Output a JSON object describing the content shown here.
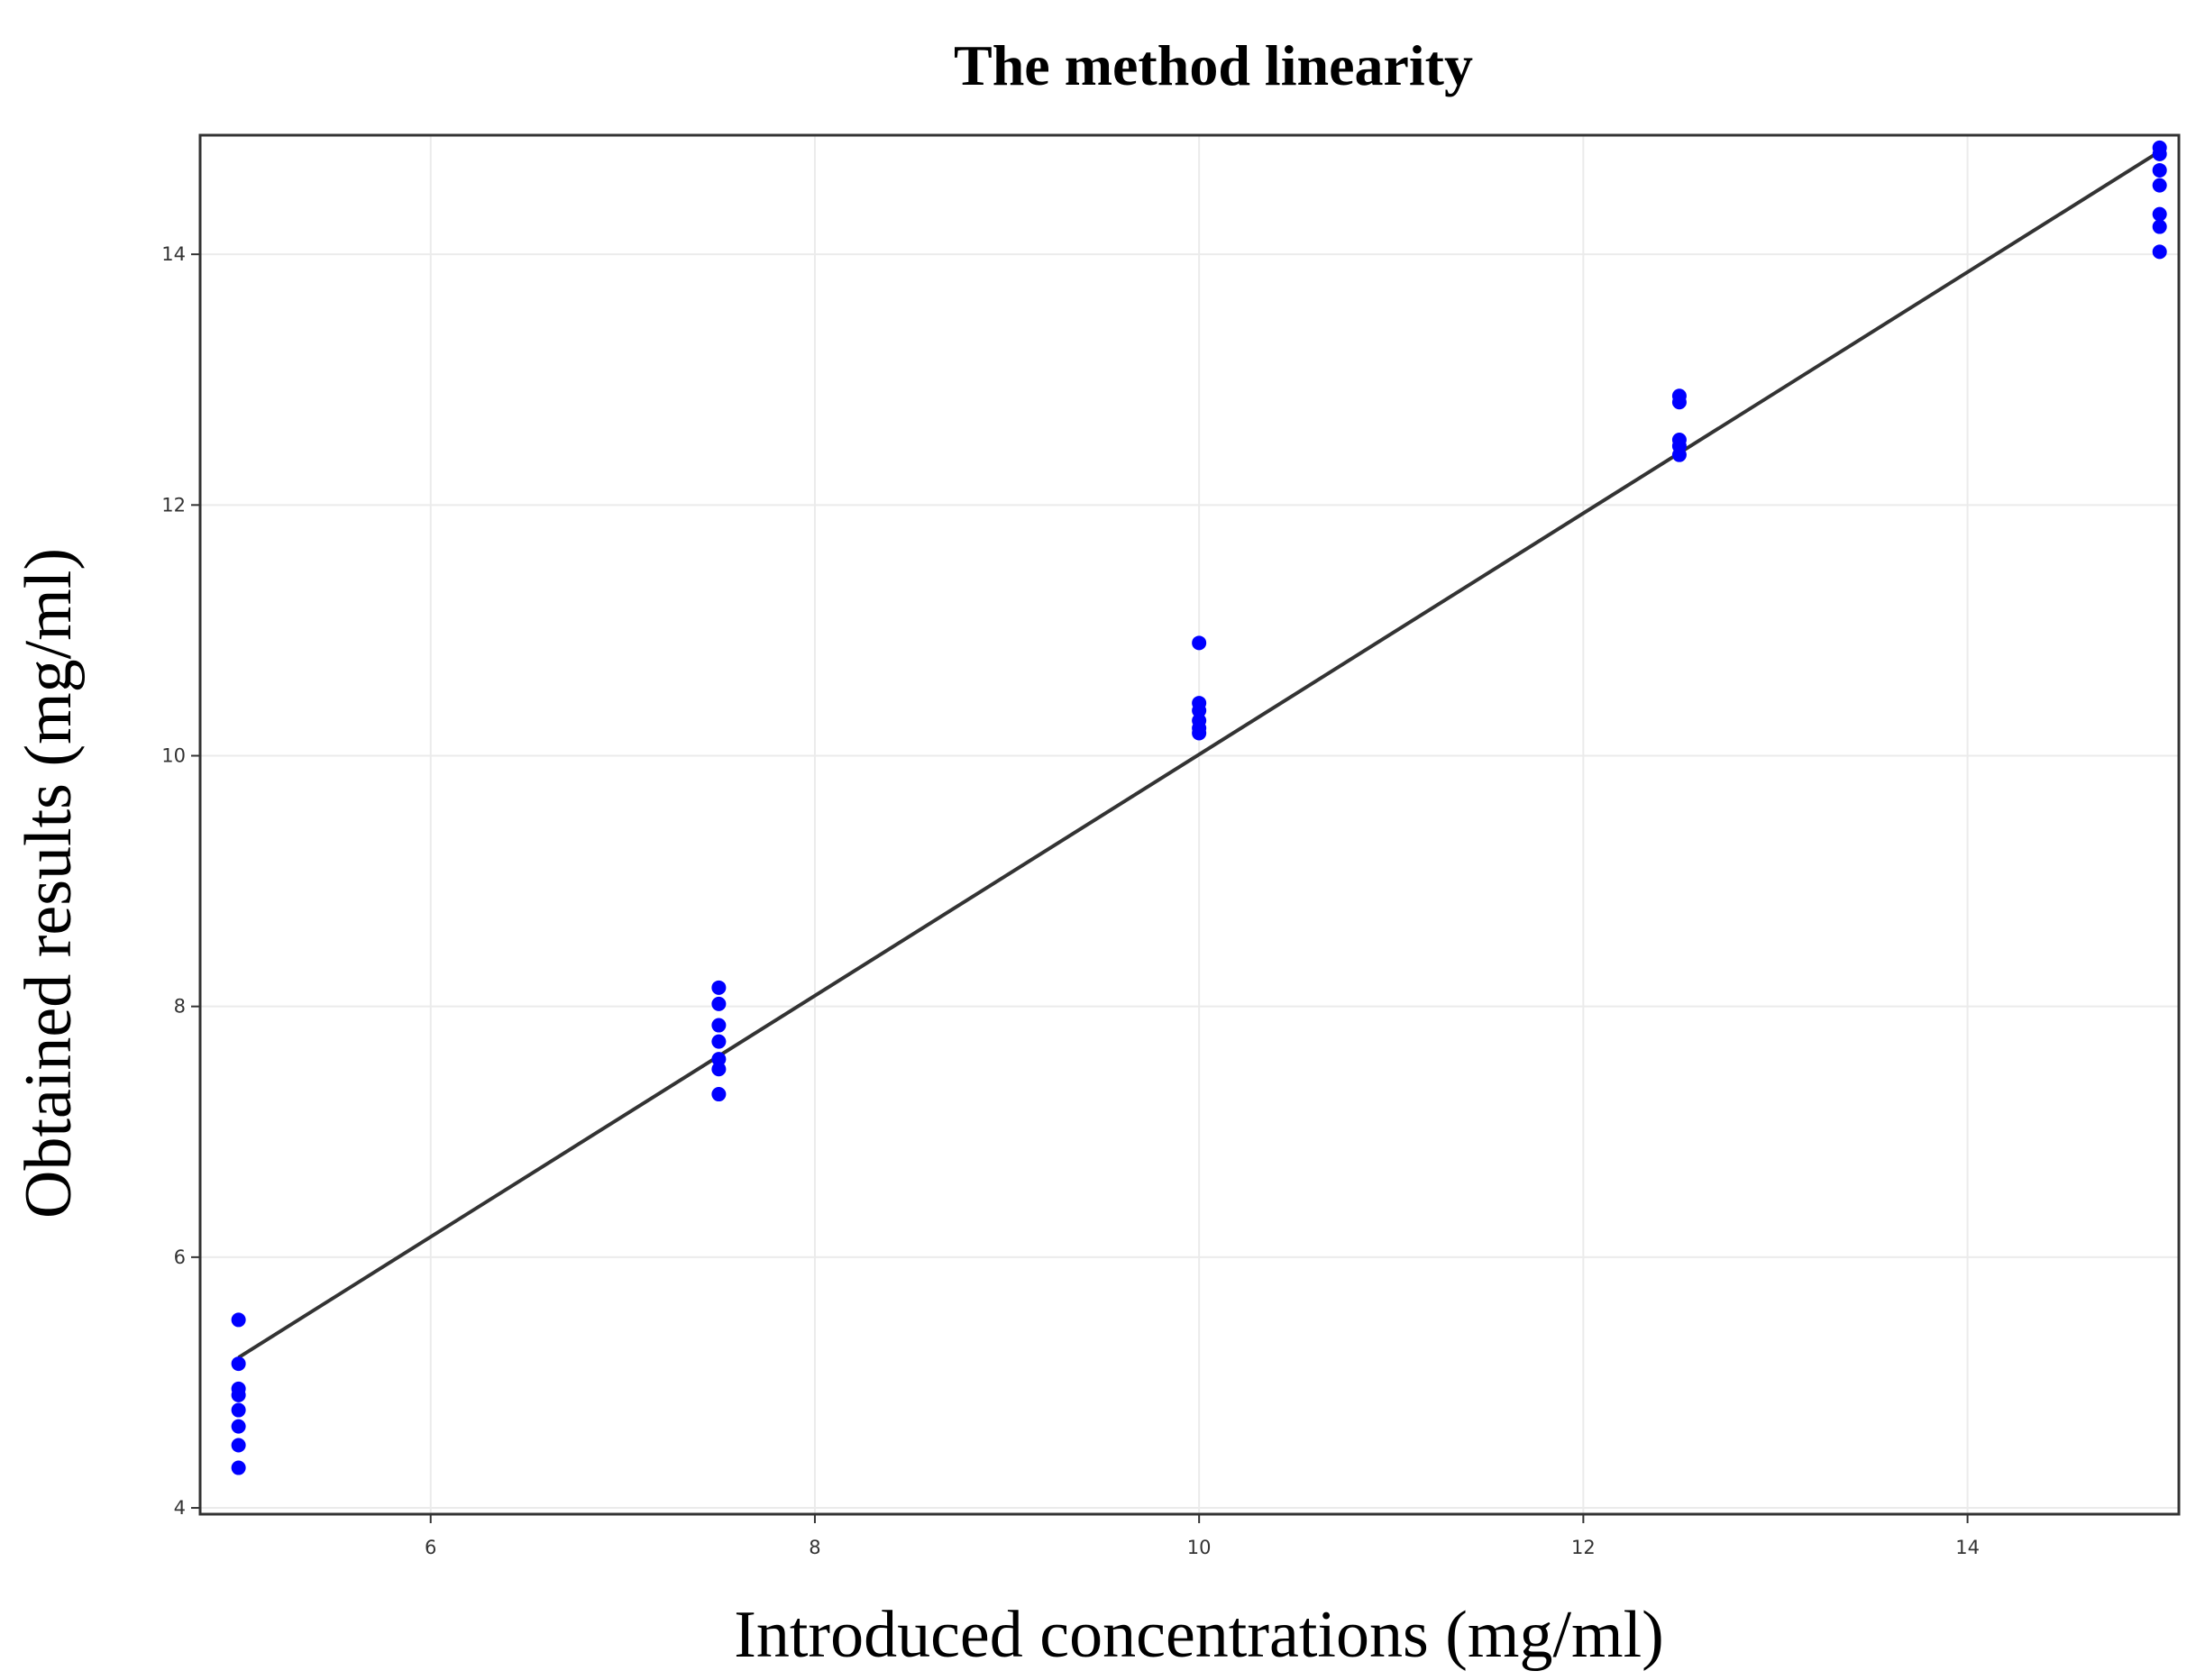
{
  "chart_data": {
    "type": "scatter",
    "title": "The method linearity",
    "xlabel": "Introduced concentrations (mg/ml)",
    "ylabel": "Obtained results (mg/ml)",
    "xlim": [
      4.8,
      15.1
    ],
    "ylim": [
      3.95,
      14.95
    ],
    "xticks": [
      6,
      8,
      10,
      12,
      14
    ],
    "yticks": [
      4,
      6,
      8,
      10,
      12,
      14
    ],
    "grid": true,
    "legend": "none",
    "point_color": "#0000ff",
    "line_color": "#333333",
    "series": [
      {
        "values": [
          [
            5,
            5.5
          ],
          [
            5,
            5.15
          ],
          [
            5,
            4.95
          ],
          [
            5,
            4.9
          ],
          [
            5,
            4.78
          ],
          [
            5,
            4.65
          ],
          [
            5,
            4.5
          ],
          [
            5,
            4.32
          ],
          [
            7.5,
            8.15
          ],
          [
            7.5,
            8.02
          ],
          [
            7.5,
            7.85
          ],
          [
            7.5,
            7.72
          ],
          [
            7.5,
            7.58
          ],
          [
            7.5,
            7.5
          ],
          [
            7.5,
            7.3
          ],
          [
            10,
            10.9
          ],
          [
            10,
            10.42
          ],
          [
            10,
            10.36
          ],
          [
            10,
            10.28
          ],
          [
            10,
            10.22
          ],
          [
            10,
            10.18
          ],
          [
            12.5,
            12.87
          ],
          [
            12.5,
            12.82
          ],
          [
            12.5,
            12.52
          ],
          [
            12.5,
            12.47
          ],
          [
            12.5,
            12.4
          ],
          [
            15,
            14.85
          ],
          [
            15,
            14.8
          ],
          [
            15,
            14.67
          ],
          [
            15,
            14.55
          ],
          [
            15,
            14.32
          ],
          [
            15,
            14.22
          ],
          [
            15,
            14.02
          ]
        ]
      }
    ],
    "fit_line": {
      "x": [
        5,
        15
      ],
      "y": [
        5.2,
        14.82
      ]
    }
  }
}
